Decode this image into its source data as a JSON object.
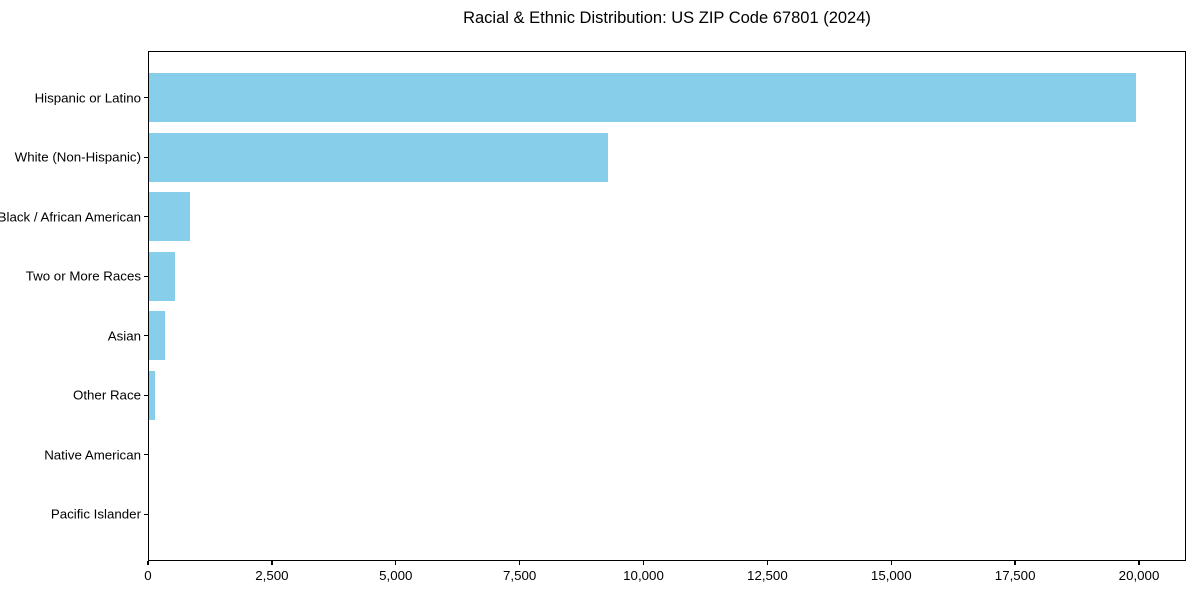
{
  "chart_data": {
    "type": "bar",
    "orientation": "horizontal",
    "title": "Racial & Ethnic Distribution: US ZIP Code 67801 (2024)",
    "categories": [
      "Hispanic or Latino",
      "White (Non-Hispanic)",
      "Black / African American",
      "Two or More Races",
      "Asian",
      "Other Race",
      "Native American",
      "Pacific Islander"
    ],
    "values": [
      19950,
      9290,
      820,
      530,
      320,
      120,
      0,
      0
    ],
    "xlabel": "",
    "ylabel": "",
    "xlim": [
      0,
      20948
    ],
    "xticks": [
      0,
      2500,
      5000,
      7500,
      10000,
      12500,
      15000,
      17500,
      20000
    ],
    "xtick_labels": [
      "0",
      "2,500",
      "5,000",
      "7,500",
      "10,000",
      "12,500",
      "15,000",
      "17,500",
      "20,000"
    ],
    "bar_color": "#87CEEB",
    "text_color": "#000000",
    "grid": false,
    "legend": false
  }
}
